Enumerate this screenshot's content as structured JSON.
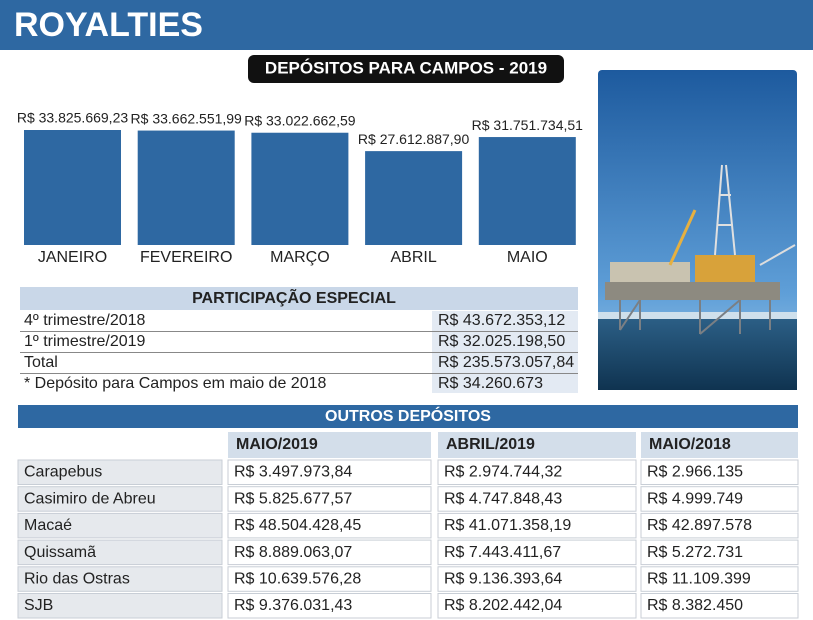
{
  "header": {
    "title": "ROYALTIES"
  },
  "chart_data": {
    "type": "bar",
    "title": "DEPÓSITOS PARA CAMPOS - 2019",
    "categories": [
      "JANEIRO",
      "FEVEREIRO",
      "MARÇO",
      "ABRIL",
      "MAIO"
    ],
    "values": [
      33825669.23,
      33662551.99,
      33022662.59,
      27612887.9,
      31751734.51
    ],
    "value_labels": [
      "R$ 33.825.669,23",
      "R$ 33.662.551,99",
      "R$ 33.022.662,59",
      "R$ 27.612.887,90",
      "R$ 31.751.734,51"
    ],
    "color": "#2e68a2"
  },
  "participacao": {
    "title": "PARTICIPAÇÃO ESPECIAL",
    "rows": [
      [
        "4º trimestre/2018",
        "R$ 43.672.353,12"
      ],
      [
        "1º trimestre/2019",
        "R$ 32.025.198,50"
      ],
      [
        "Total",
        "R$ 235.573.057,84"
      ],
      [
        "* Depósito para Campos em maio de 2018",
        "R$ 34.260.673"
      ]
    ]
  },
  "outros": {
    "title": "OUTROS DEPÓSITOS",
    "columns": [
      "MAIO/2019",
      "ABRIL/2019",
      "MAIO/2018"
    ],
    "rows": [
      [
        "Carapebus",
        "R$ 3.497.973,84",
        "R$ 2.974.744,32",
        "R$ 2.966.135"
      ],
      [
        "Casimiro de Abreu",
        "R$ 5.825.677,57",
        "R$ 4.747.848,43",
        "R$ 4.999.749"
      ],
      [
        "Macaé",
        "R$ 48.504.428,45",
        "R$ 41.071.358,19",
        "R$ 42.897.578"
      ],
      [
        "Quissamã",
        "R$ 8.889.063,07",
        "R$ 7.443.411,67",
        "R$ 5.272.731"
      ],
      [
        "Rio das Ostras",
        "R$ 10.639.576,28",
        "R$ 9.136.393,64",
        "R$ 11.109.399"
      ],
      [
        "SJB",
        "R$ 9.376.031,43",
        "R$ 8.202.442,04",
        "R$ 8.382.450"
      ]
    ]
  }
}
